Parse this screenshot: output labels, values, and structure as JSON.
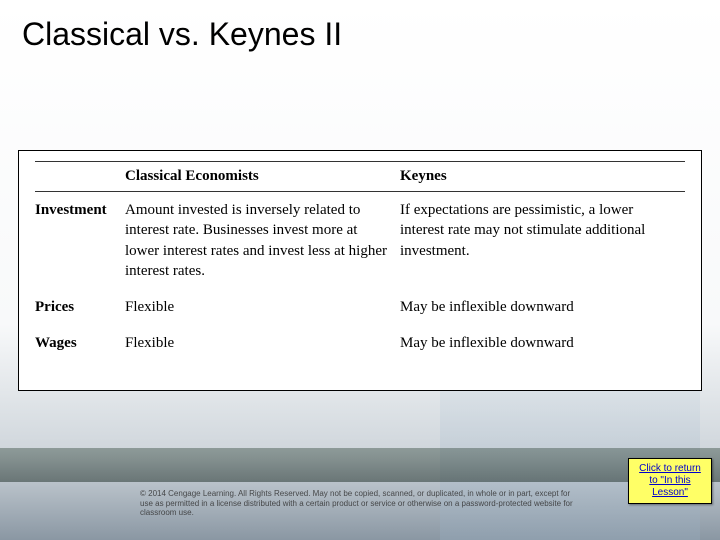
{
  "title": "Classical vs. Keynes II",
  "table": {
    "headers": {
      "blank": "",
      "classical": "Classical Economists",
      "keynes": "Keynes"
    },
    "rows": [
      {
        "label": "Investment",
        "classical": "Amount invested is inversely related to interest rate. Businesses invest more at lower interest rates and invest less at higher interest rates.",
        "keynes": "If expectations are pessimistic, a lower interest rate may not stimulate additional investment."
      },
      {
        "label": "Prices",
        "classical": "Flexible",
        "keynes": "May be inflexible downward"
      },
      {
        "label": "Wages",
        "classical": "Flexible",
        "keynes": "May be inflexible downward"
      }
    ]
  },
  "copyright": "© 2014 Cengage Learning. All Rights Reserved. May not be copied, scanned, or duplicated, in whole or in part, except for use as permitted in a license distributed with a certain product or service or otherwise on a password-protected website for classroom use.",
  "returnBtn": {
    "line1": "Click to return",
    "line2": "to \"In this",
    "line3": "Lesson\""
  },
  "colors": {
    "buttonBg": "#ffff66",
    "link": "#0000cc"
  }
}
